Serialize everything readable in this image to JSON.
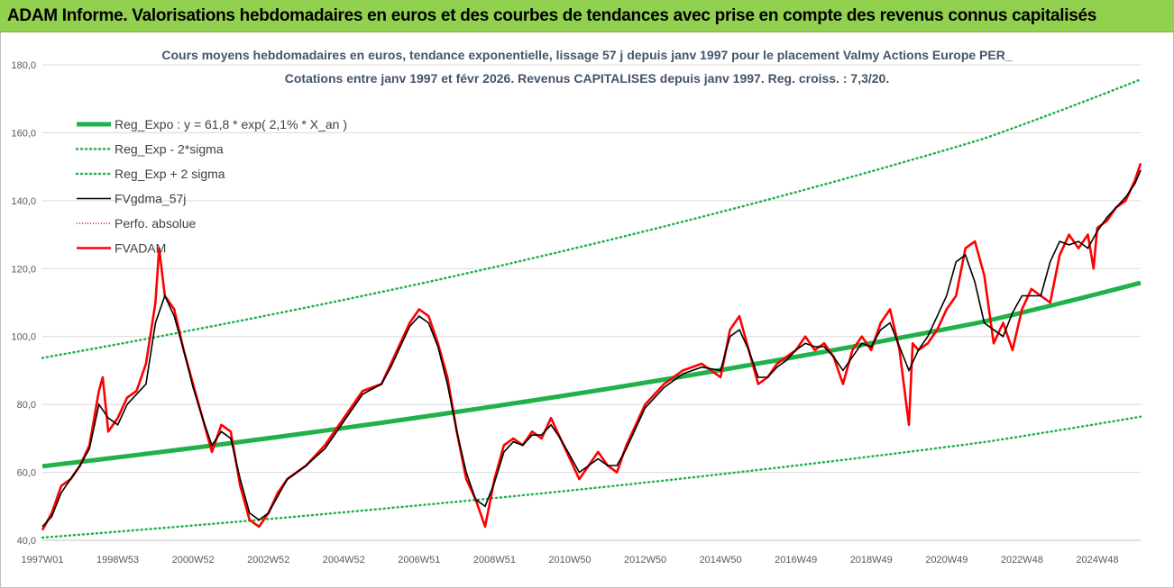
{
  "header": {
    "banner_text": "ADAM Informe. Valorisations hebdomadaires en euros et des courbes de tendances avec prise en compte des revenus connus capitalisés"
  },
  "colors": {
    "banner_bg": "#92d050",
    "reg_expo": "#21b14b",
    "band": "#21b14b",
    "fvgdma": "#000000",
    "perfo": "#e00000",
    "fvadam": "#ff0000",
    "grid": "#d9d9d9",
    "title": "#44546a"
  },
  "chart_data": {
    "type": "line",
    "title_lines": [
      "Cours moyens hebdomadaires en euros, tendance exponentielle, lissage 57 j depuis janv 1997 pour le placement Valmy Actions Europe PER_",
      "Cotations entre janv 1997 et févr 2026. Revenus CAPITALISES depuis janv 1997. Reg. croiss. : 7,3/20."
    ],
    "xlabel": "",
    "ylabel": "",
    "ylim": [
      40,
      180
    ],
    "yticks": [
      "40,0",
      "60,0",
      "80,0",
      "100,0",
      "120,0",
      "140,0",
      "160,0",
      "180,0"
    ],
    "ytick_values": [
      40,
      60,
      80,
      100,
      120,
      140,
      160,
      180
    ],
    "xlim": [
      1997.0,
      2026.15
    ],
    "xticks": [
      "1997W01",
      "1998W53",
      "2000W52",
      "2002W52",
      "2004W52",
      "2006W51",
      "2008W51",
      "2010W50",
      "2012W50",
      "2014W50",
      "2016W49",
      "2018W49",
      "2020W49",
      "2022W48",
      "2024W48"
    ],
    "xtick_values": [
      1997.0,
      1999.0,
      2001.0,
      2003.0,
      2005.0,
      2007.0,
      2009.0,
      2011.0,
      2013.0,
      2015.0,
      2017.0,
      2019.0,
      2021.0,
      2023.0,
      2025.0
    ],
    "grid": "horizontal",
    "legend_position": "top-left",
    "legend": [
      {
        "key": "reg_expo",
        "label": "Reg_Expo : y = 61,8 * exp( 2,1% *  X_an )",
        "style": "thick"
      },
      {
        "key": "band_low",
        "label": "Reg_Exp - 2*sigma",
        "style": "dotted-green"
      },
      {
        "key": "band_high",
        "label": "Reg_Exp + 2 sigma",
        "style": "dotted-green"
      },
      {
        "key": "fvgdma",
        "label": "FVgdma_57j",
        "style": "black"
      },
      {
        "key": "perfo",
        "label": "Perfo. absolue",
        "style": "dotted-red"
      },
      {
        "key": "fvadam",
        "label": "FVADAM",
        "style": "red"
      }
    ],
    "series": [
      {
        "name": "Reg_Expo : y = 61,8 * exp( 2,1% *  X_an )",
        "key": "reg_expo",
        "x": [
          1997.0,
          2002.0,
          2007.0,
          2012.0,
          2017.0,
          2022.0,
          2026.15
        ],
        "y": [
          61.8,
          68.6,
          76.2,
          84.6,
          94.0,
          104.4,
          115.8
        ]
      },
      {
        "name": "Reg_Exp - 2*sigma",
        "key": "band_low",
        "x": [
          1997.0,
          2002.0,
          2007.0,
          2012.0,
          2017.0,
          2022.0,
          2026.15
        ],
        "y": [
          40.8,
          45.3,
          50.3,
          55.8,
          62.0,
          68.9,
          76.4
        ]
      },
      {
        "name": "Reg_Exp + 2 sigma",
        "key": "band_high",
        "x": [
          1997.0,
          2002.0,
          2007.0,
          2012.0,
          2017.0,
          2022.0,
          2026.15
        ],
        "y": [
          93.7,
          104.1,
          115.5,
          128.3,
          142.5,
          158.3,
          175.7
        ]
      },
      {
        "name": "FVADAM",
        "key": "fvadam",
        "x": [
          1997.0,
          1997.25,
          1997.5,
          1997.75,
          1998.0,
          1998.25,
          1998.5,
          1998.6,
          1998.75,
          1999.0,
          1999.25,
          1999.5,
          1999.75,
          2000.0,
          2000.1,
          2000.25,
          2000.5,
          2000.75,
          2001.0,
          2001.25,
          2001.5,
          2001.75,
          2002.0,
          2002.25,
          2002.5,
          2002.75,
          2003.0,
          2003.25,
          2003.5,
          2003.75,
          2004.0,
          2004.5,
          2005.0,
          2005.5,
          2006.0,
          2006.25,
          2006.5,
          2006.75,
          2007.0,
          2007.25,
          2007.5,
          2007.75,
          2008.0,
          2008.25,
          2008.5,
          2008.75,
          2009.0,
          2009.25,
          2009.5,
          2009.75,
          2010.0,
          2010.25,
          2010.5,
          2010.75,
          2011.0,
          2011.25,
          2011.5,
          2011.75,
          2012.0,
          2012.25,
          2012.5,
          2012.75,
          2013.0,
          2013.5,
          2014.0,
          2014.5,
          2015.0,
          2015.25,
          2015.5,
          2015.75,
          2016.0,
          2016.25,
          2016.5,
          2016.75,
          2017.0,
          2017.25,
          2017.5,
          2017.75,
          2018.0,
          2018.25,
          2018.5,
          2018.75,
          2019.0,
          2019.25,
          2019.5,
          2019.75,
          2020.0,
          2020.1,
          2020.25,
          2020.5,
          2020.75,
          2021.0,
          2021.25,
          2021.5,
          2021.75,
          2022.0,
          2022.25,
          2022.5,
          2022.75,
          2023.0,
          2023.25,
          2023.5,
          2023.75,
          2024.0,
          2024.25,
          2024.5,
          2024.75,
          2024.9,
          2025.0,
          2025.25,
          2025.5,
          2025.75,
          2026.0,
          2026.15
        ],
        "y": [
          43,
          48,
          56,
          58,
          62,
          68,
          84,
          88,
          72,
          76,
          82,
          84,
          92,
          110,
          126,
          112,
          108,
          96,
          86,
          76,
          66,
          74,
          72,
          56,
          46,
          44,
          48,
          54,
          58,
          60,
          62,
          68,
          76,
          84,
          86,
          92,
          98,
          104,
          108,
          106,
          98,
          88,
          72,
          58,
          52,
          44,
          58,
          68,
          70,
          68,
          72,
          70,
          76,
          70,
          64,
          58,
          62,
          66,
          62,
          60,
          68,
          74,
          80,
          86,
          90,
          92,
          88,
          102,
          106,
          96,
          86,
          88,
          92,
          94,
          96,
          100,
          96,
          98,
          94,
          86,
          96,
          100,
          96,
          104,
          108,
          96,
          74,
          98,
          96,
          98,
          102,
          108,
          112,
          126,
          128,
          118,
          98,
          104,
          96,
          108,
          114,
          112,
          110,
          124,
          130,
          126,
          130,
          120,
          132,
          134,
          138,
          140,
          146,
          151
        ]
      },
      {
        "name": "FVgdma_57j",
        "key": "fvgdma",
        "x": [
          1997.0,
          1997.25,
          1997.5,
          1997.75,
          1998.0,
          1998.25,
          1998.5,
          1998.75,
          1999.0,
          1999.25,
          1999.5,
          1999.75,
          2000.0,
          2000.25,
          2000.5,
          2000.75,
          2001.0,
          2001.25,
          2001.5,
          2001.75,
          2002.0,
          2002.25,
          2002.5,
          2002.75,
          2003.0,
          2003.25,
          2003.5,
          2003.75,
          2004.0,
          2004.5,
          2005.0,
          2005.5,
          2006.0,
          2006.25,
          2006.5,
          2006.75,
          2007.0,
          2007.25,
          2007.5,
          2007.75,
          2008.0,
          2008.25,
          2008.5,
          2008.75,
          2009.0,
          2009.25,
          2009.5,
          2009.75,
          2010.0,
          2010.25,
          2010.5,
          2010.75,
          2011.0,
          2011.25,
          2011.5,
          2011.75,
          2012.0,
          2012.25,
          2012.5,
          2012.75,
          2013.0,
          2013.5,
          2014.0,
          2014.5,
          2015.0,
          2015.25,
          2015.5,
          2015.75,
          2016.0,
          2016.25,
          2016.5,
          2016.75,
          2017.0,
          2017.25,
          2017.5,
          2017.75,
          2018.0,
          2018.25,
          2018.5,
          2018.75,
          2019.0,
          2019.25,
          2019.5,
          2019.75,
          2020.0,
          2020.25,
          2020.5,
          2020.75,
          2021.0,
          2021.25,
          2021.5,
          2021.75,
          2022.0,
          2022.25,
          2022.5,
          2022.75,
          2023.0,
          2023.25,
          2023.5,
          2023.75,
          2024.0,
          2024.25,
          2024.5,
          2024.75,
          2025.0,
          2025.25,
          2025.5,
          2025.75,
          2026.0,
          2026.15
        ],
        "y": [
          44,
          47,
          54,
          58,
          62,
          67,
          80,
          76,
          74,
          80,
          83,
          86,
          104,
          112,
          106,
          96,
          85,
          76,
          68,
          72,
          70,
          58,
          48,
          46,
          48,
          53,
          58,
          60,
          62,
          67,
          75,
          83,
          86,
          91,
          97,
          103,
          106,
          104,
          97,
          86,
          72,
          60,
          52,
          50,
          57,
          66,
          69,
          68,
          71,
          71,
          74,
          70,
          65,
          60,
          62,
          64,
          62,
          62,
          67,
          73,
          79,
          85,
          89,
          91,
          90,
          100,
          102,
          96,
          88,
          88,
          91,
          93,
          96,
          98,
          97,
          97,
          94,
          90,
          94,
          98,
          97,
          102,
          104,
          97,
          90,
          96,
          100,
          106,
          112,
          122,
          124,
          116,
          104,
          102,
          100,
          107,
          112,
          112,
          112,
          122,
          128,
          127,
          128,
          126,
          131,
          135,
          138,
          141,
          145,
          149
        ]
      }
    ]
  }
}
